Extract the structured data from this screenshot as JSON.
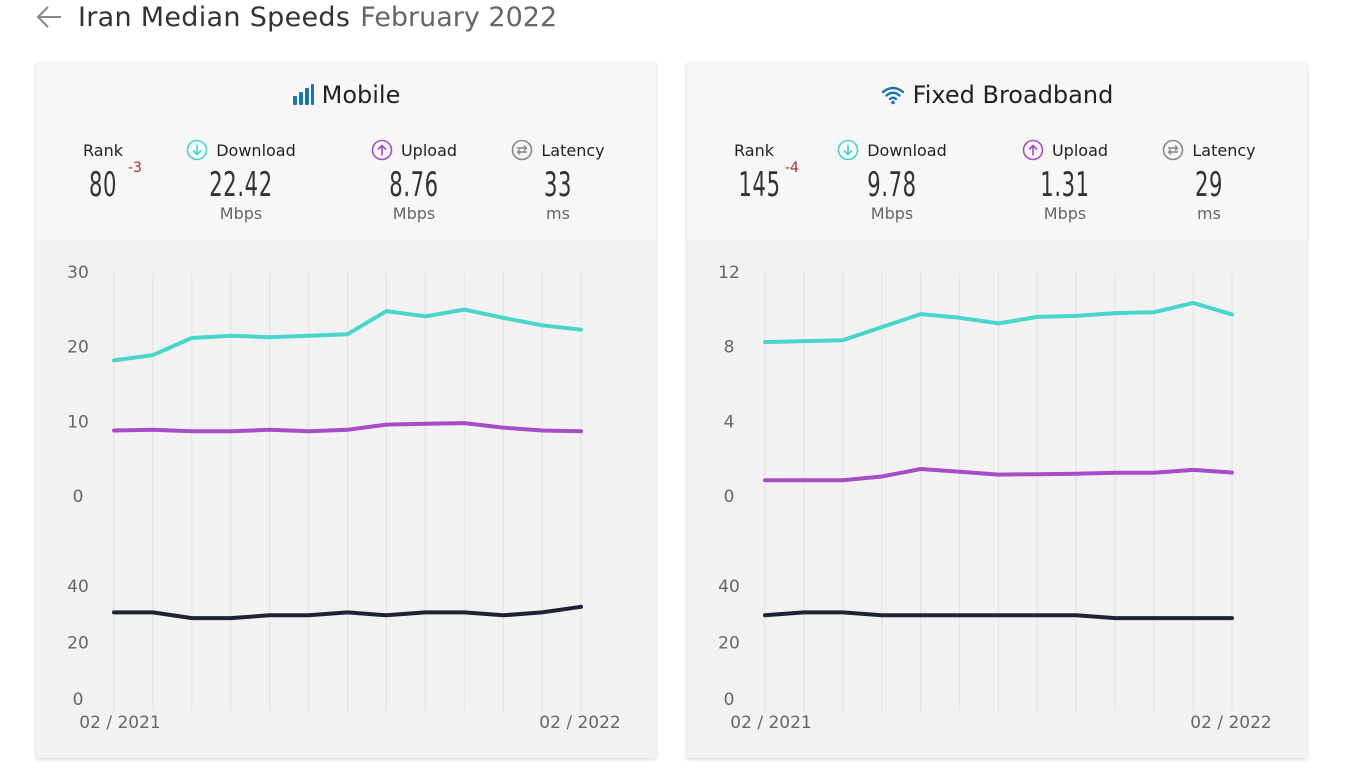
{
  "header": {
    "title": "Iran Median Speeds",
    "date": "February 2022"
  },
  "colors": {
    "download": "#47d6c9",
    "upload": "#a54cc9",
    "latency": "#1f2233",
    "rank_change": "#b3262e",
    "icon_blue": "#1a76a8",
    "latency_icon": "#888888"
  },
  "panels": [
    {
      "id": "mobile",
      "title": "Mobile",
      "icon": "signal-bars-icon",
      "rank": {
        "label": "Rank",
        "value": "80",
        "change": "-3"
      },
      "download": {
        "label": "Download",
        "value": "22.42",
        "unit": "Mbps"
      },
      "upload": {
        "label": "Upload",
        "value": "8.76",
        "unit": "Mbps"
      },
      "latency": {
        "label": "Latency",
        "value": "33",
        "unit": "ms"
      }
    },
    {
      "id": "fixed",
      "title": "Fixed Broadband",
      "icon": "wifi-icon",
      "rank": {
        "label": "Rank",
        "value": "145",
        "change": "-4"
      },
      "download": {
        "label": "Download",
        "value": "9.78",
        "unit": "Mbps"
      },
      "upload": {
        "label": "Upload",
        "value": "1.31",
        "unit": "Mbps"
      },
      "latency": {
        "label": "Latency",
        "value": "29",
        "unit": "ms"
      }
    }
  ],
  "chart_data": [
    {
      "type": "line",
      "panel": "Mobile",
      "x_start_label": "02 / 2021",
      "x_end_label": "02 / 2022",
      "speed": {
        "yticks": [
          0,
          10,
          20,
          30
        ],
        "ylim": [
          0,
          30
        ],
        "series": [
          {
            "key": "download",
            "values": [
              18.3,
              19.0,
              21.3,
              21.6,
              21.4,
              21.6,
              21.8,
              24.9,
              24.2,
              25.1,
              24.0,
              23.0,
              22.4
            ]
          },
          {
            "key": "upload",
            "values": [
              8.9,
              9.0,
              8.8,
              8.8,
              9.0,
              8.8,
              9.0,
              9.7,
              9.8,
              9.9,
              9.3,
              8.9,
              8.8
            ]
          }
        ]
      },
      "latency": {
        "yticks": [
          0,
          20,
          40
        ],
        "ylim": [
          0,
          40
        ],
        "series": [
          {
            "key": "latency",
            "values": [
              31,
              31,
              29,
              29,
              30,
              30,
              31,
              30,
              31,
              31,
              30,
              31,
              33
            ]
          }
        ]
      }
    },
    {
      "type": "line",
      "panel": "Fixed Broadband",
      "x_start_label": "02 / 2021",
      "x_end_label": "02 / 2022",
      "speed": {
        "yticks": [
          0,
          4,
          8,
          12
        ],
        "ylim": [
          0,
          12
        ],
        "series": [
          {
            "key": "download",
            "values": [
              8.3,
              8.35,
              8.4,
              9.1,
              9.8,
              9.6,
              9.3,
              9.65,
              9.7,
              9.85,
              9.9,
              10.4,
              9.78
            ]
          },
          {
            "key": "upload",
            "values": [
              0.9,
              0.9,
              0.9,
              1.1,
              1.5,
              1.35,
              1.2,
              1.22,
              1.25,
              1.3,
              1.3,
              1.45,
              1.31
            ]
          }
        ]
      },
      "latency": {
        "yticks": [
          0,
          20,
          40
        ],
        "ylim": [
          0,
          40
        ],
        "series": [
          {
            "key": "latency",
            "values": [
              30,
              31,
              31,
              30,
              30,
              30,
              30,
              30,
              30,
              29,
              29,
              29,
              29
            ]
          }
        ]
      }
    }
  ]
}
